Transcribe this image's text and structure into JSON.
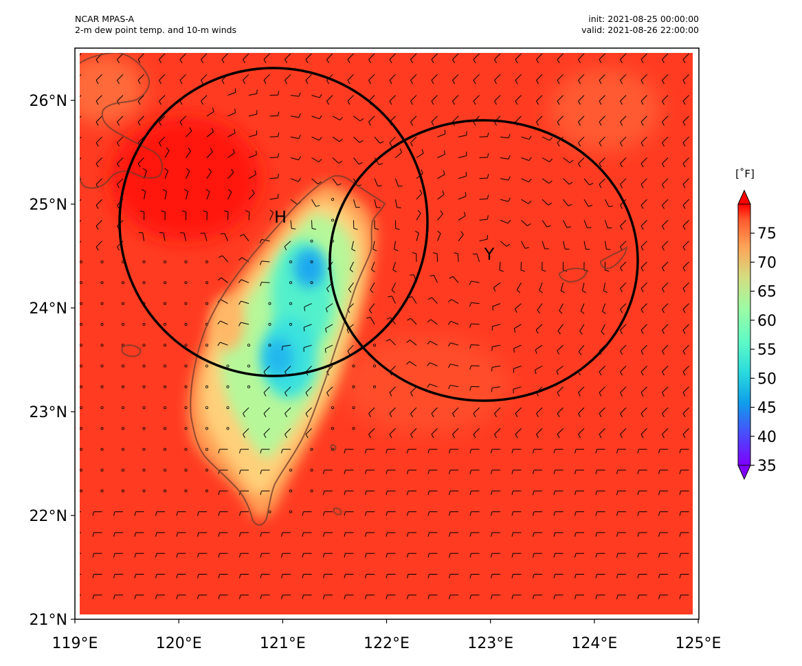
{
  "header": {
    "model": "NCAR MPAS-A",
    "field": "2-m dew point temp. and 10-m winds",
    "init": "init: 2021-08-25 00:00:00",
    "valid": "valid: 2021-08-26 22:00:00"
  },
  "axes": {
    "lon_ticks": [
      "119°E",
      "120°E",
      "121°E",
      "122°E",
      "123°E",
      "124°E",
      "125°E"
    ],
    "lat_ticks": [
      "21°N",
      "22°N",
      "23°N",
      "24°N",
      "25°N",
      "26°N"
    ],
    "lon_range": [
      119,
      125
    ],
    "lat_range": [
      21,
      26.5
    ]
  },
  "colorbar": {
    "unit": "[˚F]",
    "ticks": [
      "35",
      "40",
      "45",
      "50",
      "55",
      "60",
      "65",
      "70",
      "75"
    ],
    "range": [
      35,
      80
    ],
    "extend": "both",
    "colormap": "rainbow"
  },
  "markers": [
    {
      "label": "H",
      "lon": 120.97,
      "lat": 24.88
    },
    {
      "label": "Y",
      "lon": 122.95,
      "lat": 24.52
    }
  ],
  "circles": [
    {
      "center_lon": 120.97,
      "center_lat": 24.83,
      "radius_deg": 1.48
    },
    {
      "center_lon": 122.95,
      "center_lat": 24.47,
      "radius_deg": 1.48
    }
  ],
  "colors": {
    "background_field": "#ff3a1e",
    "circle_stroke": "#000000",
    "coastline": "#6b3a2a"
  }
}
